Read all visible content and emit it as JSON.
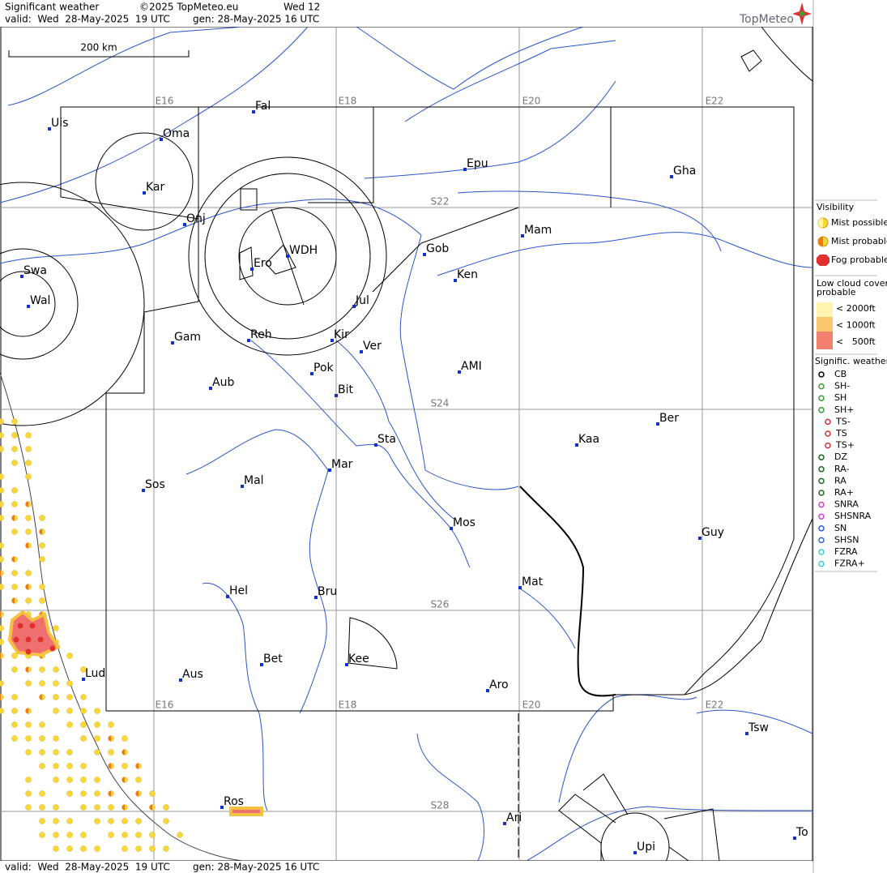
{
  "header": {
    "title": "Significant weather",
    "copyright": "©2025 TopMeteo.eu",
    "run": "Wed 12",
    "valid": "valid:  Wed  28-May-2025  19 UTC",
    "generated": "gen: 28-May-2025 16 UTC",
    "brand": "TopMeteo"
  },
  "scale": "200 km",
  "grid_labels": {
    "lon": [
      "E16",
      "E18",
      "E20",
      "E22"
    ],
    "lat": [
      "S22",
      "S24",
      "S26",
      "S28"
    ]
  },
  "places": [
    "Uis",
    "Fal",
    "Oma",
    "Kar",
    "Onj",
    "WDH",
    "Ero",
    "Swa",
    "Wal",
    "Gob",
    "Mam",
    "Ken",
    "Epu",
    "Gha",
    "Jul",
    "Gam",
    "Reh",
    "Kir",
    "Ver",
    "Pok",
    "Bit",
    "AMI",
    "Aub",
    "Sta",
    "Ber",
    "Kaa",
    "Mar",
    "Sos",
    "Mal",
    "Mos",
    "Guy",
    "Mat",
    "Hel",
    "Bru",
    "Bet",
    "Kee",
    "Aus",
    "Lud",
    "Aro",
    "Tsw",
    "Ros",
    "Ari",
    "Upi",
    "To"
  ],
  "legend": {
    "visibility": {
      "title": "Visibility",
      "items": [
        "Mist possible",
        "Mist probable",
        "Fog probable"
      ]
    },
    "low_cloud": {
      "title": [
        "Low cloud cover",
        "probable"
      ],
      "items": [
        "< 2000ft",
        "< 1000ft",
        "<   500ft"
      ]
    },
    "weather": {
      "title": "Signific. weather",
      "items": [
        "CB",
        "SH-",
        "SH",
        "SH+",
        "TS-",
        "TS",
        "TS+",
        "DZ",
        "RA-",
        "RA",
        "RA+",
        "SNRA",
        "SHSNRA",
        "SN",
        "SHSN",
        "FZRA",
        "FZRA+"
      ]
    }
  },
  "footer": {
    "valid": "valid:  Wed  28-May-2025  19 UTC",
    "generated": "gen: 28-May-2025 16 UTC"
  }
}
